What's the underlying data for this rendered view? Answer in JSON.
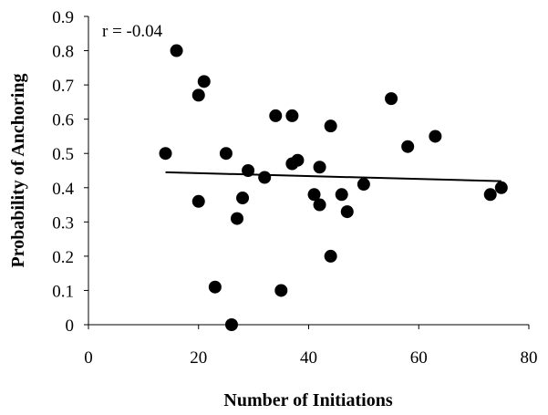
{
  "chart_data": {
    "type": "scatter",
    "xlabel": "Number of Initiations",
    "ylabel": "Probability of Anchoring",
    "annotation": "r = -0.04",
    "xlim": [
      0,
      80
    ],
    "ylim": [
      0,
      0.9
    ],
    "x_ticks": [
      "0",
      "20",
      "40",
      "60",
      "80"
    ],
    "y_ticks": [
      "0",
      "0.1",
      "0.2",
      "0.3",
      "0.4",
      "0.5",
      "0.6",
      "0.7",
      "0.8",
      "0.9"
    ],
    "grid": false,
    "legend": "none",
    "marker_color": "#000000",
    "points": [
      {
        "x": 14,
        "y": 0.5
      },
      {
        "x": 16,
        "y": 0.8
      },
      {
        "x": 20,
        "y": 0.67
      },
      {
        "x": 21,
        "y": 0.71
      },
      {
        "x": 20,
        "y": 0.36
      },
      {
        "x": 23,
        "y": 0.11
      },
      {
        "x": 25,
        "y": 0.5
      },
      {
        "x": 26,
        "y": 0.0
      },
      {
        "x": 27,
        "y": 0.31
      },
      {
        "x": 28,
        "y": 0.37
      },
      {
        "x": 29,
        "y": 0.45
      },
      {
        "x": 32,
        "y": 0.43
      },
      {
        "x": 34,
        "y": 0.61
      },
      {
        "x": 35,
        "y": 0.1
      },
      {
        "x": 37,
        "y": 0.61
      },
      {
        "x": 37,
        "y": 0.47
      },
      {
        "x": 38,
        "y": 0.48
      },
      {
        "x": 41,
        "y": 0.38
      },
      {
        "x": 42,
        "y": 0.46
      },
      {
        "x": 42,
        "y": 0.35
      },
      {
        "x": 44,
        "y": 0.58
      },
      {
        "x": 44,
        "y": 0.2
      },
      {
        "x": 46,
        "y": 0.38
      },
      {
        "x": 47,
        "y": 0.33
      },
      {
        "x": 50,
        "y": 0.41
      },
      {
        "x": 55,
        "y": 0.66
      },
      {
        "x": 58,
        "y": 0.52
      },
      {
        "x": 63,
        "y": 0.55
      },
      {
        "x": 73,
        "y": 0.38
      },
      {
        "x": 75,
        "y": 0.4
      }
    ],
    "trendline": {
      "x": [
        14,
        75
      ],
      "y": [
        0.445,
        0.419
      ]
    }
  }
}
